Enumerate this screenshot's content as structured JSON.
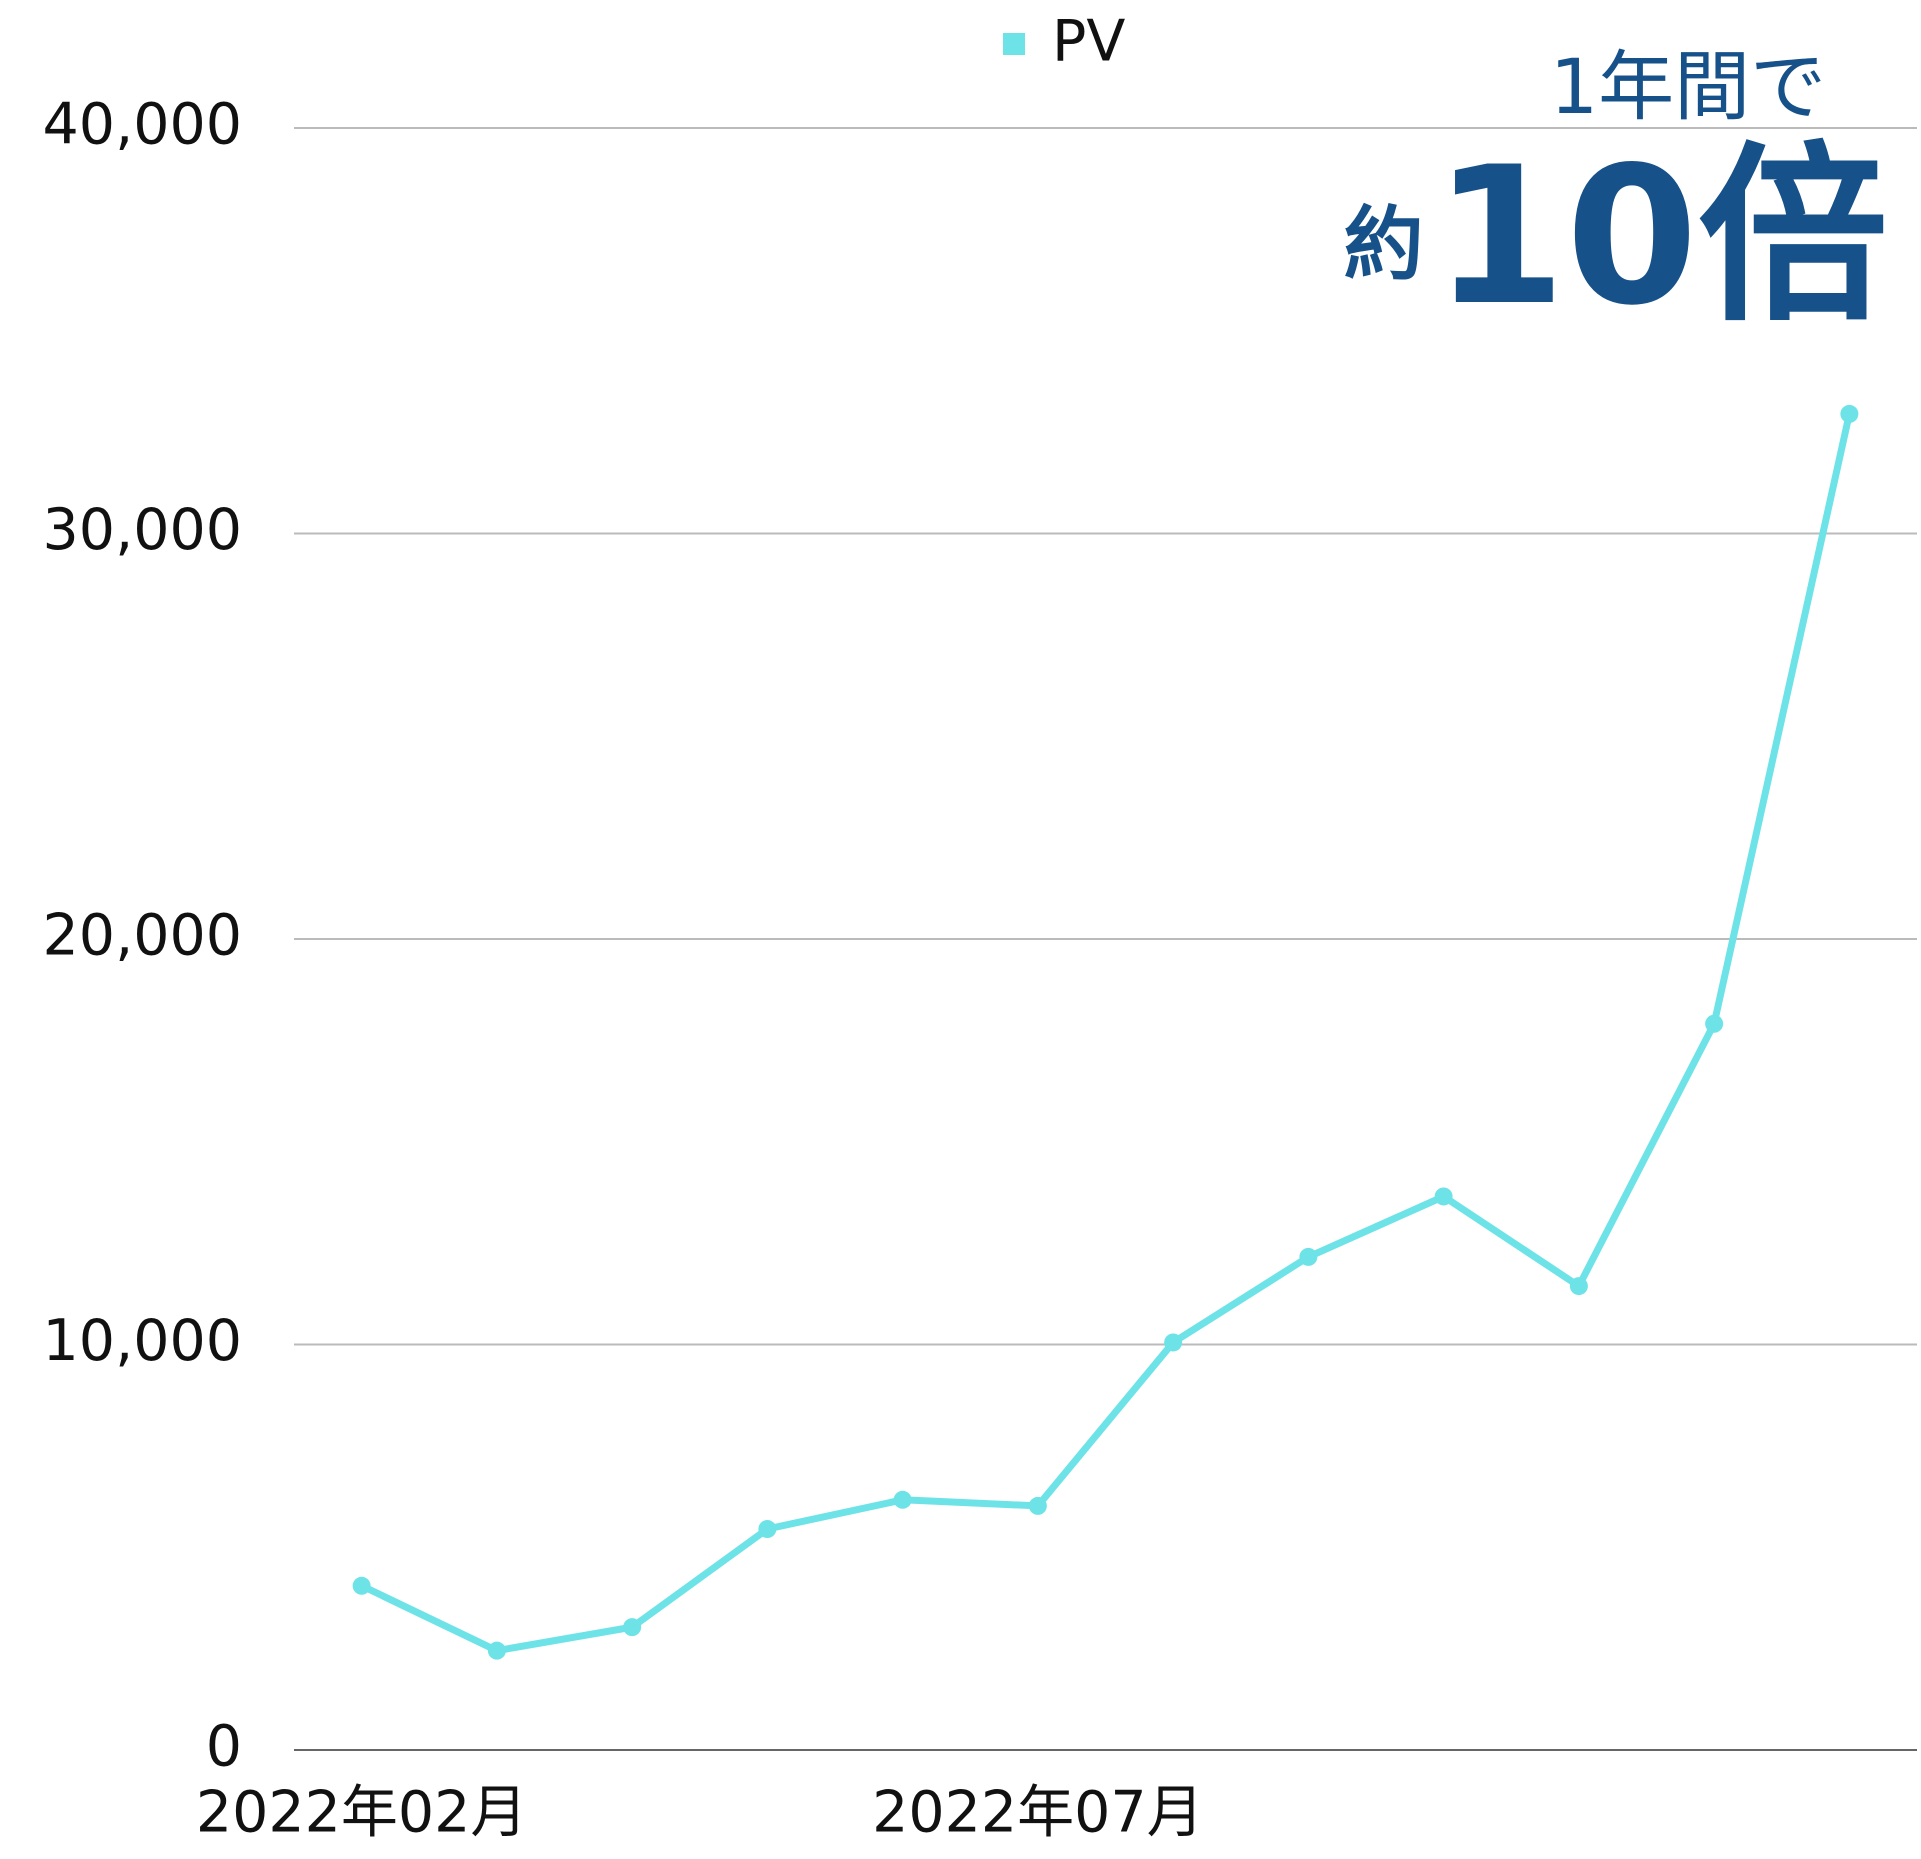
{
  "chart_data": {
    "type": "line",
    "categories": [
      "2022年02月",
      null,
      null,
      null,
      null,
      "2022年07月",
      null,
      null,
      null,
      null,
      null,
      null
    ],
    "series": [
      {
        "name": "PV",
        "color": "#6de3e8",
        "values": [
          4050,
          2450,
          3030,
          5450,
          6170,
          6020,
          10050,
          12160,
          13650,
          11440,
          17910,
          32950
        ]
      }
    ],
    "ylim": [
      0,
      40000
    ],
    "yticks": [
      0,
      {
        "value": 10000,
        "label": "10,000"
      },
      {
        "value": 20000,
        "label": "20,000"
      },
      {
        "value": 30000,
        "label": "30,000"
      },
      {
        "value": 40000,
        "label": "40,000"
      }
    ],
    "grid": true,
    "legend": "top",
    "annotation": {
      "line1": "1年間で",
      "prefix": "約",
      "emphasis": "10倍",
      "color": "#175189"
    }
  }
}
